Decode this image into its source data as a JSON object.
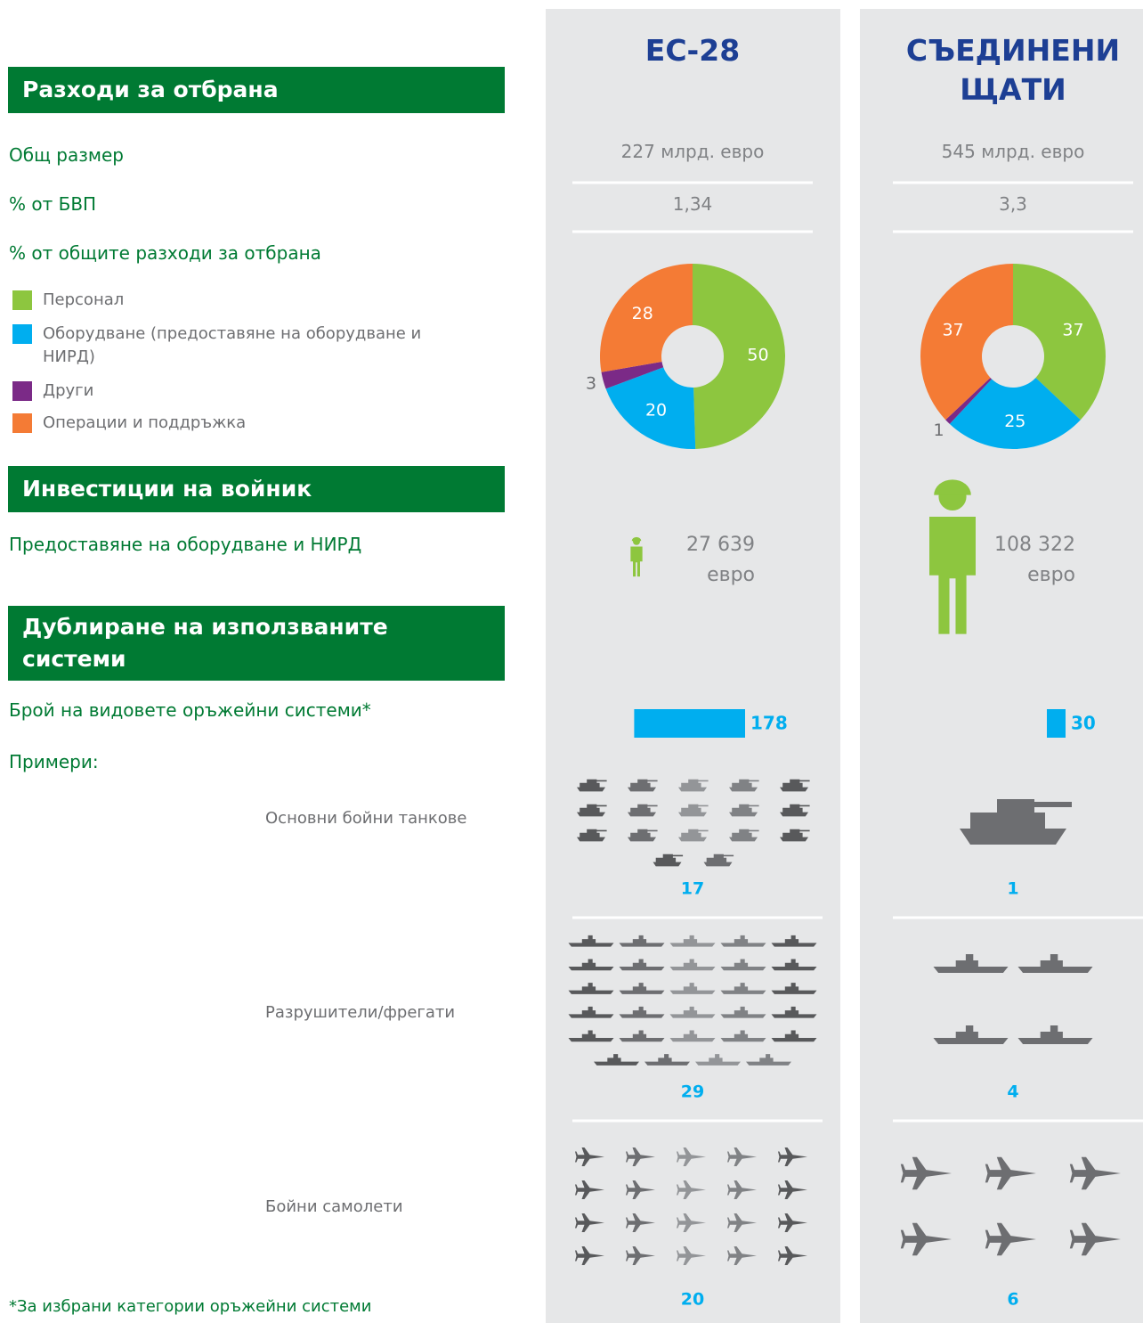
{
  "left": {
    "header_spending": "Разходи за отбрана",
    "total_size": "Общ размер",
    "gdp_share": "% от БВП",
    "spending_share": "% от общите  разходи за отбрана",
    "legend": [
      {
        "label": "Персонал",
        "color": "#8dc63f"
      },
      {
        "label": "Оборудване (предоставяне на оборудване и НИРД)",
        "color": "#00aeef"
      },
      {
        "label": "Други",
        "color": "#7b2a87"
      },
      {
        "label": "Операции и поддръжка",
        "color": "#f47b35"
      }
    ],
    "header_investment": "Инвестиции на войник",
    "investment_label": "Предоставяне на оборудване и НИРД",
    "header_duplication": "Дублиране на използваните системи",
    "systems_label": "Брой на видовете оръжейни системи*",
    "examples_label": "Примери:",
    "tanks_label": "Основни бойни танкове",
    "ships_label": "Разрушители/фрегати",
    "aircraft_label": "Бойни самолети",
    "footnote": "*За избрани категории оръжейни системи"
  },
  "columns": [
    {
      "title": "ЕС-28",
      "total": "227 млрд. евро",
      "gdp": "1,34",
      "shares": [
        50,
        20,
        3,
        28
      ],
      "per_soldier": {
        "value": 27639,
        "label": "27 639"
      },
      "per_soldier_unit": "евро",
      "weapon_systems": 178,
      "tanks": 17,
      "ships": 29,
      "aircraft": 20
    },
    {
      "title": "СЪЕДИНЕНИ ЩАТИ",
      "total": "545 млрд. евро",
      "gdp": "3,3",
      "shares": [
        37,
        25,
        1,
        37
      ],
      "per_soldier": {
        "value": 108322,
        "label": "108 322"
      },
      "per_soldier_unit": "евро",
      "weapon_systems": 30,
      "tanks": 1,
      "ships": 4,
      "aircraft": 6
    }
  ]
}
